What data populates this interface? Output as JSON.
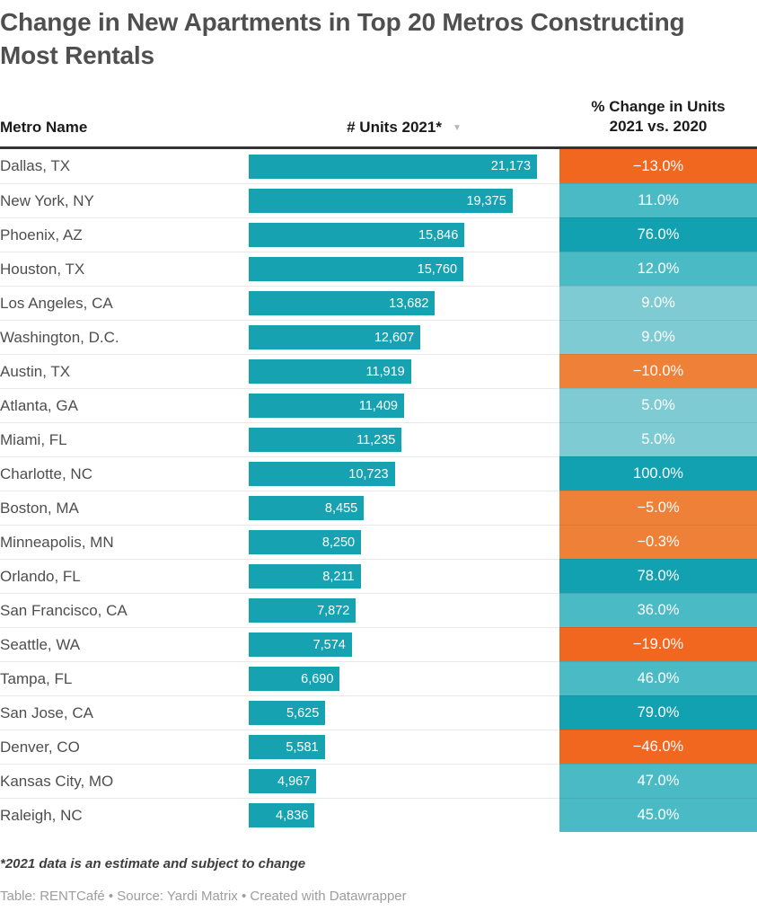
{
  "title": "Change in New Apartments in Top 20 Metros Constructing Most Rentals",
  "header": {
    "metro_col": "Metro Name",
    "units_col": "# Units 2021*",
    "units_sort_icon": "▼",
    "change_col_line1": "% Change in Units",
    "change_col_line2": "2021 vs. 2020"
  },
  "colors": {
    "bar_teal": "#16a2b1",
    "dark_teal": "#12a1b0",
    "medium_teal": "#4abac5",
    "light_teal": "#7fcbd4",
    "medium_orange": "#ef8038",
    "deep_orange": "#f2671f",
    "header_rule": "#333333",
    "row_separator": "#e9e9e9"
  },
  "chart_data": {
    "type": "table",
    "title": "Change in New Apartments in Top 20 Metros Constructing Most Rentals",
    "columns": [
      "Metro Name",
      "# Units 2021*",
      "% Change in Units 2021 vs. 2020"
    ],
    "bar_max_value": 21173,
    "sorted_by": "# Units 2021* descending",
    "rows": [
      {
        "metro": "Dallas, TX",
        "units": 21173,
        "units_label": "21,173",
        "change_pct": -13.0,
        "change_label": "−13.0%",
        "cell_color": "#f2671f"
      },
      {
        "metro": "New York, NY",
        "units": 19375,
        "units_label": "19,375",
        "change_pct": 11.0,
        "change_label": "11.0%",
        "cell_color": "#4abac5"
      },
      {
        "metro": "Phoenix, AZ",
        "units": 15846,
        "units_label": "15,846",
        "change_pct": 76.0,
        "change_label": "76.0%",
        "cell_color": "#12a1b0"
      },
      {
        "metro": "Houston, TX",
        "units": 15760,
        "units_label": "15,760",
        "change_pct": 12.0,
        "change_label": "12.0%",
        "cell_color": "#4abac5"
      },
      {
        "metro": "Los Angeles, CA",
        "units": 13682,
        "units_label": "13,682",
        "change_pct": 9.0,
        "change_label": "9.0%",
        "cell_color": "#7fcbd4"
      },
      {
        "metro": "Washington, D.C.",
        "units": 12607,
        "units_label": "12,607",
        "change_pct": 9.0,
        "change_label": "9.0%",
        "cell_color": "#7fcbd4"
      },
      {
        "metro": "Austin, TX",
        "units": 11919,
        "units_label": "11,919",
        "change_pct": -10.0,
        "change_label": "−10.0%",
        "cell_color": "#ef8038"
      },
      {
        "metro": "Atlanta, GA",
        "units": 11409,
        "units_label": "11,409",
        "change_pct": 5.0,
        "change_label": "5.0%",
        "cell_color": "#7fcbd4"
      },
      {
        "metro": "Miami, FL",
        "units": 11235,
        "units_label": "11,235",
        "change_pct": 5.0,
        "change_label": "5.0%",
        "cell_color": "#7fcbd4"
      },
      {
        "metro": "Charlotte, NC",
        "units": 10723,
        "units_label": "10,723",
        "change_pct": 100.0,
        "change_label": "100.0%",
        "cell_color": "#12a1b0"
      },
      {
        "metro": "Boston, MA",
        "units": 8455,
        "units_label": "8,455",
        "change_pct": -5.0,
        "change_label": "−5.0%",
        "cell_color": "#ef8038"
      },
      {
        "metro": "Minneapolis, MN",
        "units": 8250,
        "units_label": "8,250",
        "change_pct": -0.3,
        "change_label": "−0.3%",
        "cell_color": "#ef8038"
      },
      {
        "metro": "Orlando, FL",
        "units": 8211,
        "units_label": "8,211",
        "change_pct": 78.0,
        "change_label": "78.0%",
        "cell_color": "#12a1b0"
      },
      {
        "metro": "San Francisco, CA",
        "units": 7872,
        "units_label": "7,872",
        "change_pct": 36.0,
        "change_label": "36.0%",
        "cell_color": "#4abac5"
      },
      {
        "metro": "Seattle, WA",
        "units": 7574,
        "units_label": "7,574",
        "change_pct": -19.0,
        "change_label": "−19.0%",
        "cell_color": "#f2671f"
      },
      {
        "metro": "Tampa, FL",
        "units": 6690,
        "units_label": "6,690",
        "change_pct": 46.0,
        "change_label": "46.0%",
        "cell_color": "#4abac5"
      },
      {
        "metro": "San Jose, CA",
        "units": 5625,
        "units_label": "5,625",
        "change_pct": 79.0,
        "change_label": "79.0%",
        "cell_color": "#12a1b0"
      },
      {
        "metro": "Denver, CO",
        "units": 5581,
        "units_label": "5,581",
        "change_pct": -46.0,
        "change_label": "−46.0%",
        "cell_color": "#f2671f"
      },
      {
        "metro": "Kansas City, MO",
        "units": 4967,
        "units_label": "4,967",
        "change_pct": 47.0,
        "change_label": "47.0%",
        "cell_color": "#4abac5"
      },
      {
        "metro": "Raleigh, NC",
        "units": 4836,
        "units_label": "4,836",
        "change_pct": 45.0,
        "change_label": "45.0%",
        "cell_color": "#4abac5"
      }
    ]
  },
  "footnote": "*2021 data is an estimate and subject to change",
  "credit": "Table: RENTCafé • Source: Yardi Matrix • Created with Datawrapper"
}
